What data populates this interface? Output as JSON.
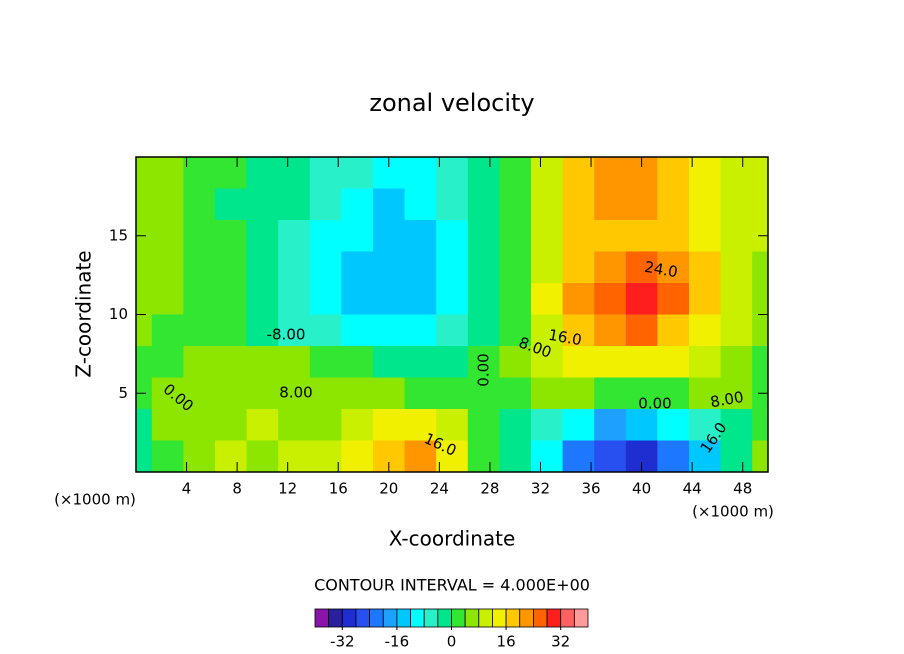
{
  "chart_data": {
    "type": "contour",
    "title": "zonal velocity",
    "x_label": "X-coordinate",
    "y_label": "Z-coordinate",
    "x_unit_label": "(×1000 m)",
    "y_unit_label": "(×1000 m)",
    "xlim": [
      0,
      50
    ],
    "ylim": [
      0,
      20
    ],
    "xticks": [
      4,
      8,
      12,
      16,
      20,
      24,
      28,
      32,
      36,
      40,
      44,
      48
    ],
    "yticks": [
      5,
      10,
      15
    ],
    "x": [
      0,
      2.5,
      5,
      7.5,
      10,
      12.5,
      15,
      17.5,
      20,
      22.5,
      25,
      27.5,
      30,
      32.5,
      35,
      37.5,
      40,
      42.5,
      45,
      47.5,
      50
    ],
    "y": [
      19,
      17,
      15,
      13,
      11,
      9,
      7,
      5,
      3,
      1
    ],
    "z": [
      [
        6,
        4,
        2,
        0,
        -2,
        -4,
        -6,
        -8,
        -10,
        -10,
        -8,
        -4,
        2,
        10,
        18,
        20,
        20,
        18,
        14,
        10,
        10
      ],
      [
        6,
        4,
        2,
        -2,
        -2,
        -4,
        -8,
        -10,
        -14,
        -12,
        -8,
        -4,
        2,
        10,
        18,
        20,
        20,
        16,
        14,
        10,
        10
      ],
      [
        6,
        4,
        2,
        0,
        -2,
        -6,
        -10,
        -12,
        -16,
        -14,
        -10,
        -4,
        2,
        10,
        16,
        18,
        18,
        16,
        14,
        10,
        8
      ],
      [
        6,
        4,
        2,
        0,
        -2,
        -6,
        -10,
        -14,
        -14,
        -14,
        -10,
        -4,
        2,
        10,
        16,
        20,
        24,
        20,
        16,
        10,
        6
      ],
      [
        6,
        4,
        2,
        0,
        -4,
        -6,
        -10,
        -14,
        -16,
        -14,
        -10,
        -4,
        2,
        12,
        20,
        24,
        28,
        24,
        16,
        10,
        6
      ],
      [
        4,
        2,
        2,
        0,
        -2,
        -6,
        -8,
        -10,
        -12,
        -10,
        -8,
        -2,
        2,
        10,
        16,
        20,
        24,
        18,
        12,
        8,
        4
      ],
      [
        2,
        2,
        4,
        4,
        4,
        4,
        2,
        0,
        -4,
        -4,
        -2,
        0,
        4,
        8,
        12,
        14,
        14,
        12,
        8,
        4,
        2
      ],
      [
        0,
        6,
        6,
        6,
        6,
        6,
        4,
        4,
        4,
        2,
        2,
        0,
        2,
        4,
        4,
        2,
        2,
        2,
        4,
        4,
        2
      ],
      [
        -2,
        4,
        6,
        6,
        8,
        6,
        6,
        10,
        14,
        14,
        8,
        2,
        -2,
        -6,
        -12,
        -18,
        -16,
        -12,
        -8,
        -2,
        2
      ],
      [
        -4,
        2,
        6,
        8,
        6,
        8,
        8,
        14,
        16,
        20,
        12,
        2,
        -4,
        -12,
        -24,
        -28,
        -32,
        -24,
        -16,
        -4,
        4
      ]
    ],
    "clim": [
      -40,
      40
    ],
    "colors": [
      "#8a14a8",
      "#2a1f9c",
      "#1e2ed0",
      "#2850f0",
      "#1e78ff",
      "#1ea0ff",
      "#00c8ff",
      "#00ffff",
      "#28f0c8",
      "#00e68c",
      "#32e632",
      "#8ce600",
      "#c8f000",
      "#f0f000",
      "#ffc800",
      "#ff9600",
      "#ff6400",
      "#ff1e1e",
      "#ff6060",
      "#ff9a9a"
    ],
    "colorbar_ticks": [
      -32,
      -16,
      0,
      16,
      32
    ],
    "contour_interval_label": "CONTOUR INTERVAL = 4.000E+00",
    "contour_labels": [
      "-8.00",
      "8.00",
      "0.00",
      "16.0",
      "0.00",
      "8.00",
      "16.0",
      "24.0",
      "0.00",
      "8.00",
      "16.0"
    ]
  }
}
